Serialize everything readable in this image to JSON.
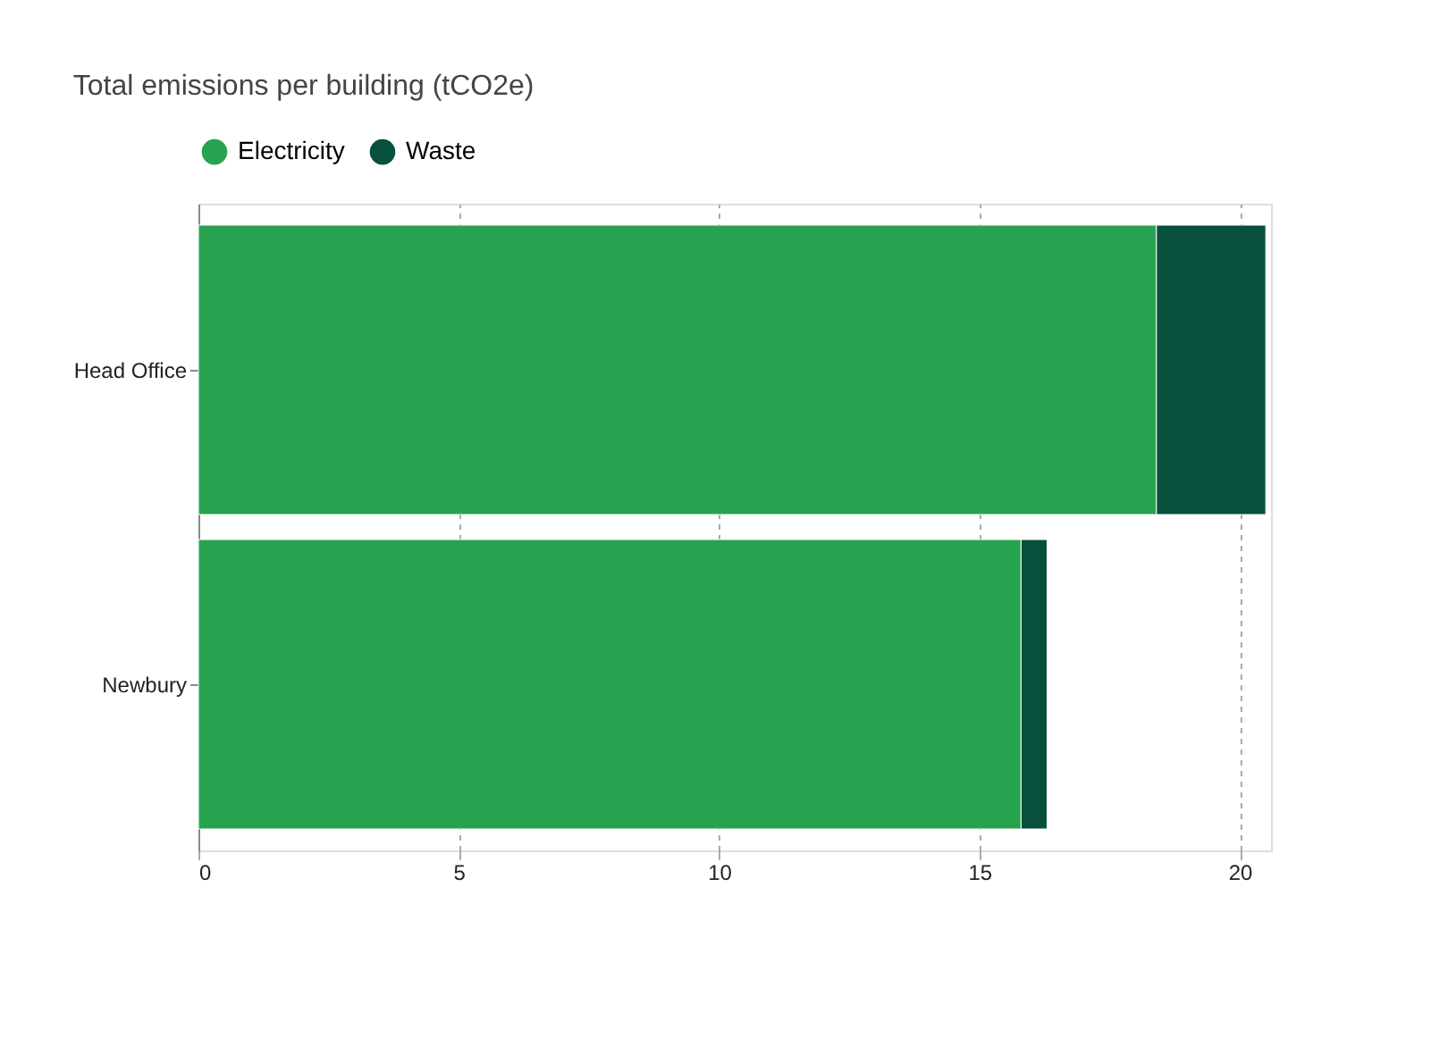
{
  "chart_data": {
    "type": "bar",
    "orientation": "horizontal",
    "stacked": true,
    "title": "Total emissions per building (tCO2e)",
    "categories": [
      "Head Office",
      "Newbury"
    ],
    "series": [
      {
        "name": "Electricity",
        "color": "#27a350",
        "values": [
          18.4,
          15.8
        ]
      },
      {
        "name": "Waste",
        "color": "#07503c",
        "values": [
          2.1,
          0.5
        ]
      }
    ],
    "xlim": [
      0,
      20.6
    ],
    "xticks": [
      0,
      5,
      10,
      15,
      20
    ],
    "grid": "x",
    "legend": "top"
  }
}
